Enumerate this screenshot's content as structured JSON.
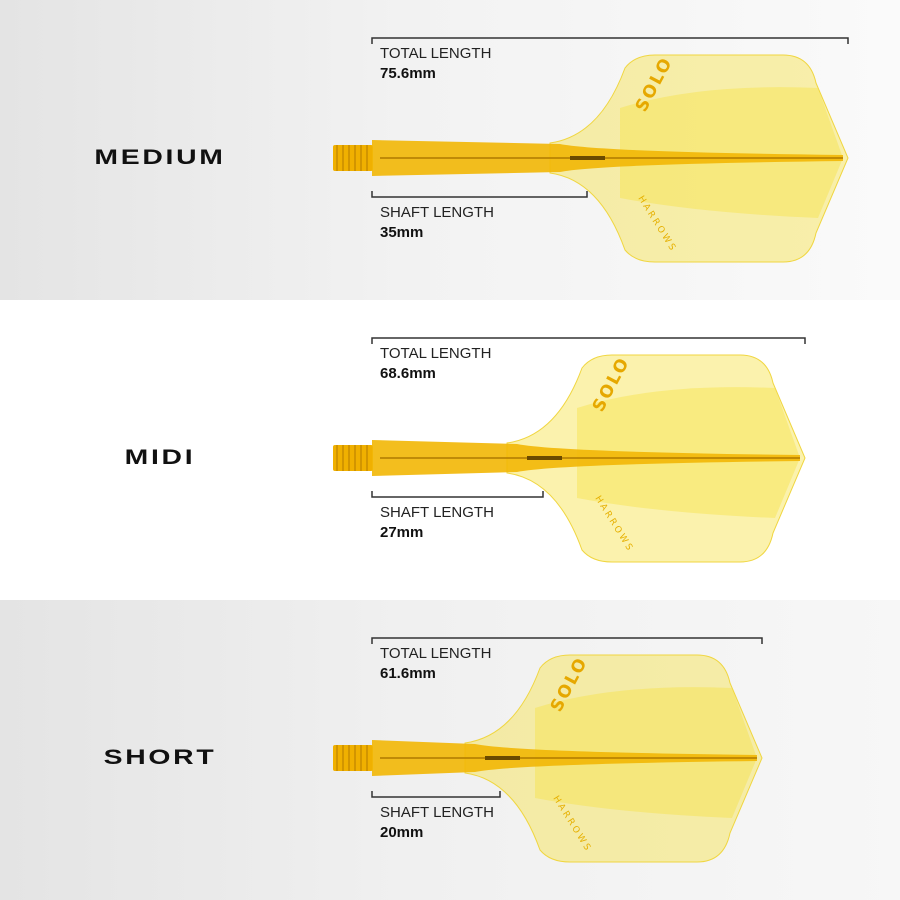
{
  "colors": {
    "flight": "#f7e34a",
    "shaft": "#f2b705",
    "bracket": "#333333"
  },
  "brand": {
    "logo": "SOLO",
    "maker": "HARROWS"
  },
  "variants": [
    {
      "name": "MEDIUM",
      "total_label": "TOTAL LENGTH",
      "total_value": "75.6mm",
      "shaft_label": "SHAFT LENGTH",
      "shaft_value": "35mm"
    },
    {
      "name": "MIDI",
      "total_label": "TOTAL LENGTH",
      "total_value": "68.6mm",
      "shaft_label": "SHAFT LENGTH",
      "shaft_value": "27mm"
    },
    {
      "name": "SHORT",
      "total_label": "TOTAL LENGTH",
      "total_value": "61.6mm",
      "shaft_label": "SHAFT LENGTH",
      "shaft_value": "20mm"
    }
  ]
}
